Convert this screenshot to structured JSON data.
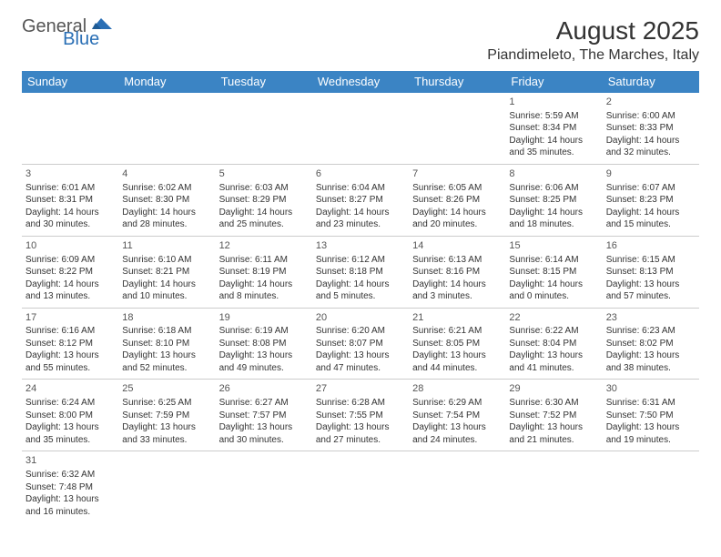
{
  "logo": {
    "text_general": "General",
    "text_blue": "Blue",
    "shape_color": "#2a6fb5"
  },
  "title": "August 2025",
  "location": "Piandimeleto, The Marches, Italy",
  "header_bg": "#3b84c4",
  "header_fg": "#ffffff",
  "row_border_top": "#3b84c4",
  "row_border_bottom": "#cccccc",
  "text_color": "#333333",
  "font_family": "Arial",
  "day_labels": [
    "Sunday",
    "Monday",
    "Tuesday",
    "Wednesday",
    "Thursday",
    "Friday",
    "Saturday"
  ],
  "weeks": [
    [
      null,
      null,
      null,
      null,
      null,
      {
        "n": "1",
        "sr": "Sunrise: 5:59 AM",
        "ss": "Sunset: 8:34 PM",
        "d1": "Daylight: 14 hours",
        "d2": "and 35 minutes."
      },
      {
        "n": "2",
        "sr": "Sunrise: 6:00 AM",
        "ss": "Sunset: 8:33 PM",
        "d1": "Daylight: 14 hours",
        "d2": "and 32 minutes."
      }
    ],
    [
      {
        "n": "3",
        "sr": "Sunrise: 6:01 AM",
        "ss": "Sunset: 8:31 PM",
        "d1": "Daylight: 14 hours",
        "d2": "and 30 minutes."
      },
      {
        "n": "4",
        "sr": "Sunrise: 6:02 AM",
        "ss": "Sunset: 8:30 PM",
        "d1": "Daylight: 14 hours",
        "d2": "and 28 minutes."
      },
      {
        "n": "5",
        "sr": "Sunrise: 6:03 AM",
        "ss": "Sunset: 8:29 PM",
        "d1": "Daylight: 14 hours",
        "d2": "and 25 minutes."
      },
      {
        "n": "6",
        "sr": "Sunrise: 6:04 AM",
        "ss": "Sunset: 8:27 PM",
        "d1": "Daylight: 14 hours",
        "d2": "and 23 minutes."
      },
      {
        "n": "7",
        "sr": "Sunrise: 6:05 AM",
        "ss": "Sunset: 8:26 PM",
        "d1": "Daylight: 14 hours",
        "d2": "and 20 minutes."
      },
      {
        "n": "8",
        "sr": "Sunrise: 6:06 AM",
        "ss": "Sunset: 8:25 PM",
        "d1": "Daylight: 14 hours",
        "d2": "and 18 minutes."
      },
      {
        "n": "9",
        "sr": "Sunrise: 6:07 AM",
        "ss": "Sunset: 8:23 PM",
        "d1": "Daylight: 14 hours",
        "d2": "and 15 minutes."
      }
    ],
    [
      {
        "n": "10",
        "sr": "Sunrise: 6:09 AM",
        "ss": "Sunset: 8:22 PM",
        "d1": "Daylight: 14 hours",
        "d2": "and 13 minutes."
      },
      {
        "n": "11",
        "sr": "Sunrise: 6:10 AM",
        "ss": "Sunset: 8:21 PM",
        "d1": "Daylight: 14 hours",
        "d2": "and 10 minutes."
      },
      {
        "n": "12",
        "sr": "Sunrise: 6:11 AM",
        "ss": "Sunset: 8:19 PM",
        "d1": "Daylight: 14 hours",
        "d2": "and 8 minutes."
      },
      {
        "n": "13",
        "sr": "Sunrise: 6:12 AM",
        "ss": "Sunset: 8:18 PM",
        "d1": "Daylight: 14 hours",
        "d2": "and 5 minutes."
      },
      {
        "n": "14",
        "sr": "Sunrise: 6:13 AM",
        "ss": "Sunset: 8:16 PM",
        "d1": "Daylight: 14 hours",
        "d2": "and 3 minutes."
      },
      {
        "n": "15",
        "sr": "Sunrise: 6:14 AM",
        "ss": "Sunset: 8:15 PM",
        "d1": "Daylight: 14 hours",
        "d2": "and 0 minutes."
      },
      {
        "n": "16",
        "sr": "Sunrise: 6:15 AM",
        "ss": "Sunset: 8:13 PM",
        "d1": "Daylight: 13 hours",
        "d2": "and 57 minutes."
      }
    ],
    [
      {
        "n": "17",
        "sr": "Sunrise: 6:16 AM",
        "ss": "Sunset: 8:12 PM",
        "d1": "Daylight: 13 hours",
        "d2": "and 55 minutes."
      },
      {
        "n": "18",
        "sr": "Sunrise: 6:18 AM",
        "ss": "Sunset: 8:10 PM",
        "d1": "Daylight: 13 hours",
        "d2": "and 52 minutes."
      },
      {
        "n": "19",
        "sr": "Sunrise: 6:19 AM",
        "ss": "Sunset: 8:08 PM",
        "d1": "Daylight: 13 hours",
        "d2": "and 49 minutes."
      },
      {
        "n": "20",
        "sr": "Sunrise: 6:20 AM",
        "ss": "Sunset: 8:07 PM",
        "d1": "Daylight: 13 hours",
        "d2": "and 47 minutes."
      },
      {
        "n": "21",
        "sr": "Sunrise: 6:21 AM",
        "ss": "Sunset: 8:05 PM",
        "d1": "Daylight: 13 hours",
        "d2": "and 44 minutes."
      },
      {
        "n": "22",
        "sr": "Sunrise: 6:22 AM",
        "ss": "Sunset: 8:04 PM",
        "d1": "Daylight: 13 hours",
        "d2": "and 41 minutes."
      },
      {
        "n": "23",
        "sr": "Sunrise: 6:23 AM",
        "ss": "Sunset: 8:02 PM",
        "d1": "Daylight: 13 hours",
        "d2": "and 38 minutes."
      }
    ],
    [
      {
        "n": "24",
        "sr": "Sunrise: 6:24 AM",
        "ss": "Sunset: 8:00 PM",
        "d1": "Daylight: 13 hours",
        "d2": "and 35 minutes."
      },
      {
        "n": "25",
        "sr": "Sunrise: 6:25 AM",
        "ss": "Sunset: 7:59 PM",
        "d1": "Daylight: 13 hours",
        "d2": "and 33 minutes."
      },
      {
        "n": "26",
        "sr": "Sunrise: 6:27 AM",
        "ss": "Sunset: 7:57 PM",
        "d1": "Daylight: 13 hours",
        "d2": "and 30 minutes."
      },
      {
        "n": "27",
        "sr": "Sunrise: 6:28 AM",
        "ss": "Sunset: 7:55 PM",
        "d1": "Daylight: 13 hours",
        "d2": "and 27 minutes."
      },
      {
        "n": "28",
        "sr": "Sunrise: 6:29 AM",
        "ss": "Sunset: 7:54 PM",
        "d1": "Daylight: 13 hours",
        "d2": "and 24 minutes."
      },
      {
        "n": "29",
        "sr": "Sunrise: 6:30 AM",
        "ss": "Sunset: 7:52 PM",
        "d1": "Daylight: 13 hours",
        "d2": "and 21 minutes."
      },
      {
        "n": "30",
        "sr": "Sunrise: 6:31 AM",
        "ss": "Sunset: 7:50 PM",
        "d1": "Daylight: 13 hours",
        "d2": "and 19 minutes."
      }
    ],
    [
      {
        "n": "31",
        "sr": "Sunrise: 6:32 AM",
        "ss": "Sunset: 7:48 PM",
        "d1": "Daylight: 13 hours",
        "d2": "and 16 minutes."
      },
      null,
      null,
      null,
      null,
      null,
      null
    ]
  ]
}
